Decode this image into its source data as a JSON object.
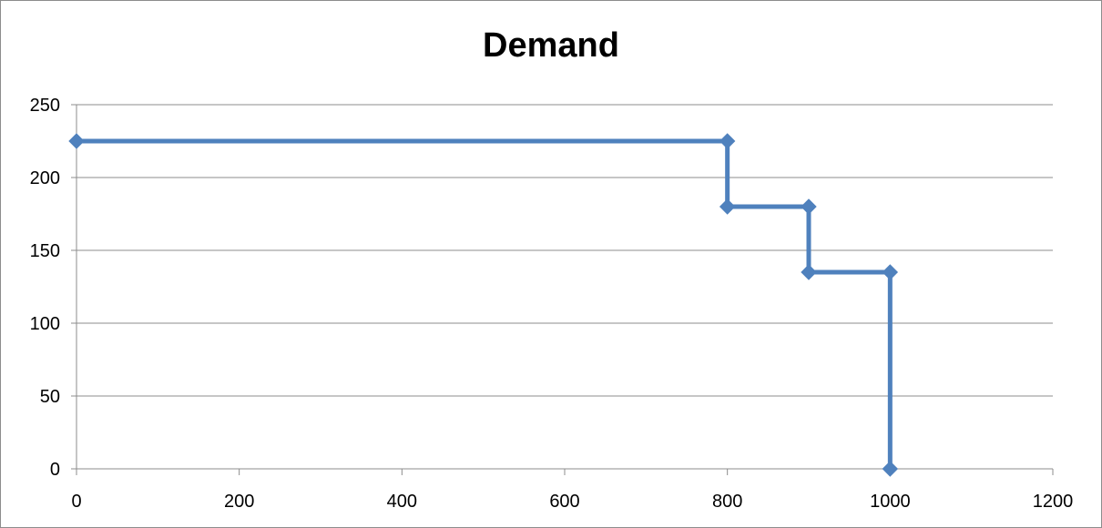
{
  "chart_data": {
    "type": "line",
    "title": "Demand",
    "xlabel": "",
    "ylabel": "",
    "xlim": [
      0,
      1200
    ],
    "ylim": [
      0,
      250
    ],
    "x_ticks": [
      0,
      200,
      400,
      600,
      800,
      1000,
      1200
    ],
    "y_ticks": [
      0,
      50,
      100,
      150,
      200,
      250
    ],
    "grid": "horizontal",
    "legend": "none",
    "series": [
      {
        "color": "#4f81bd",
        "marker": "diamond",
        "points": [
          {
            "x": 0,
            "y": 225
          },
          {
            "x": 800,
            "y": 225
          },
          {
            "x": 800,
            "y": 180
          },
          {
            "x": 900,
            "y": 180
          },
          {
            "x": 900,
            "y": 135
          },
          {
            "x": 1000,
            "y": 135
          },
          {
            "x": 1000,
            "y": 0
          }
        ]
      }
    ],
    "colors": {
      "gridline": "#8c8c8c",
      "axis": "#8c8c8c",
      "frame": "#8c8c8c"
    }
  }
}
